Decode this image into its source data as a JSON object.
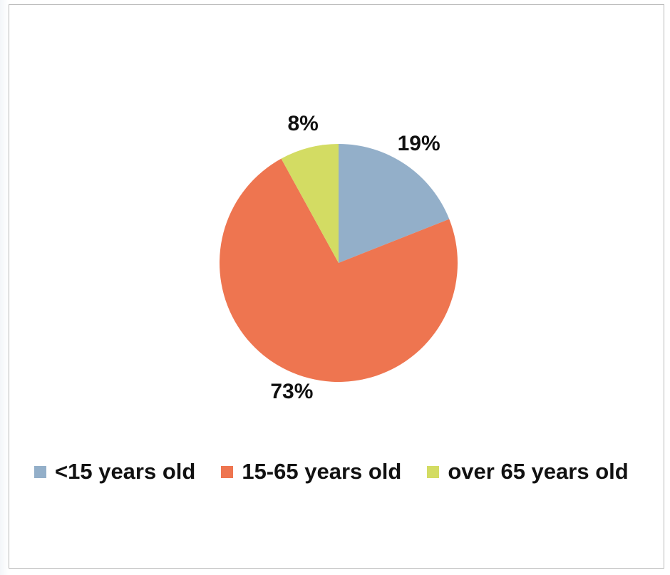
{
  "chart_data": {
    "type": "pie",
    "title": "",
    "categories": [
      "<15 years old",
      "15-65 years old",
      "over 65 years old"
    ],
    "values": [
      19,
      73,
      8
    ],
    "data_labels": [
      "19%",
      "73%",
      "8%"
    ],
    "colors": [
      "#93afc9",
      "#ee7550",
      "#d3dc63"
    ],
    "start_angle_deg": 0,
    "direction": "clockwise",
    "legend": {
      "position": "bottom",
      "items": [
        {
          "label": "<15 years old",
          "color": "#93afc9"
        },
        {
          "label": "15-65 years old",
          "color": "#ee7550"
        },
        {
          "label": "over 65 years old",
          "color": "#d3dc63"
        }
      ]
    }
  }
}
